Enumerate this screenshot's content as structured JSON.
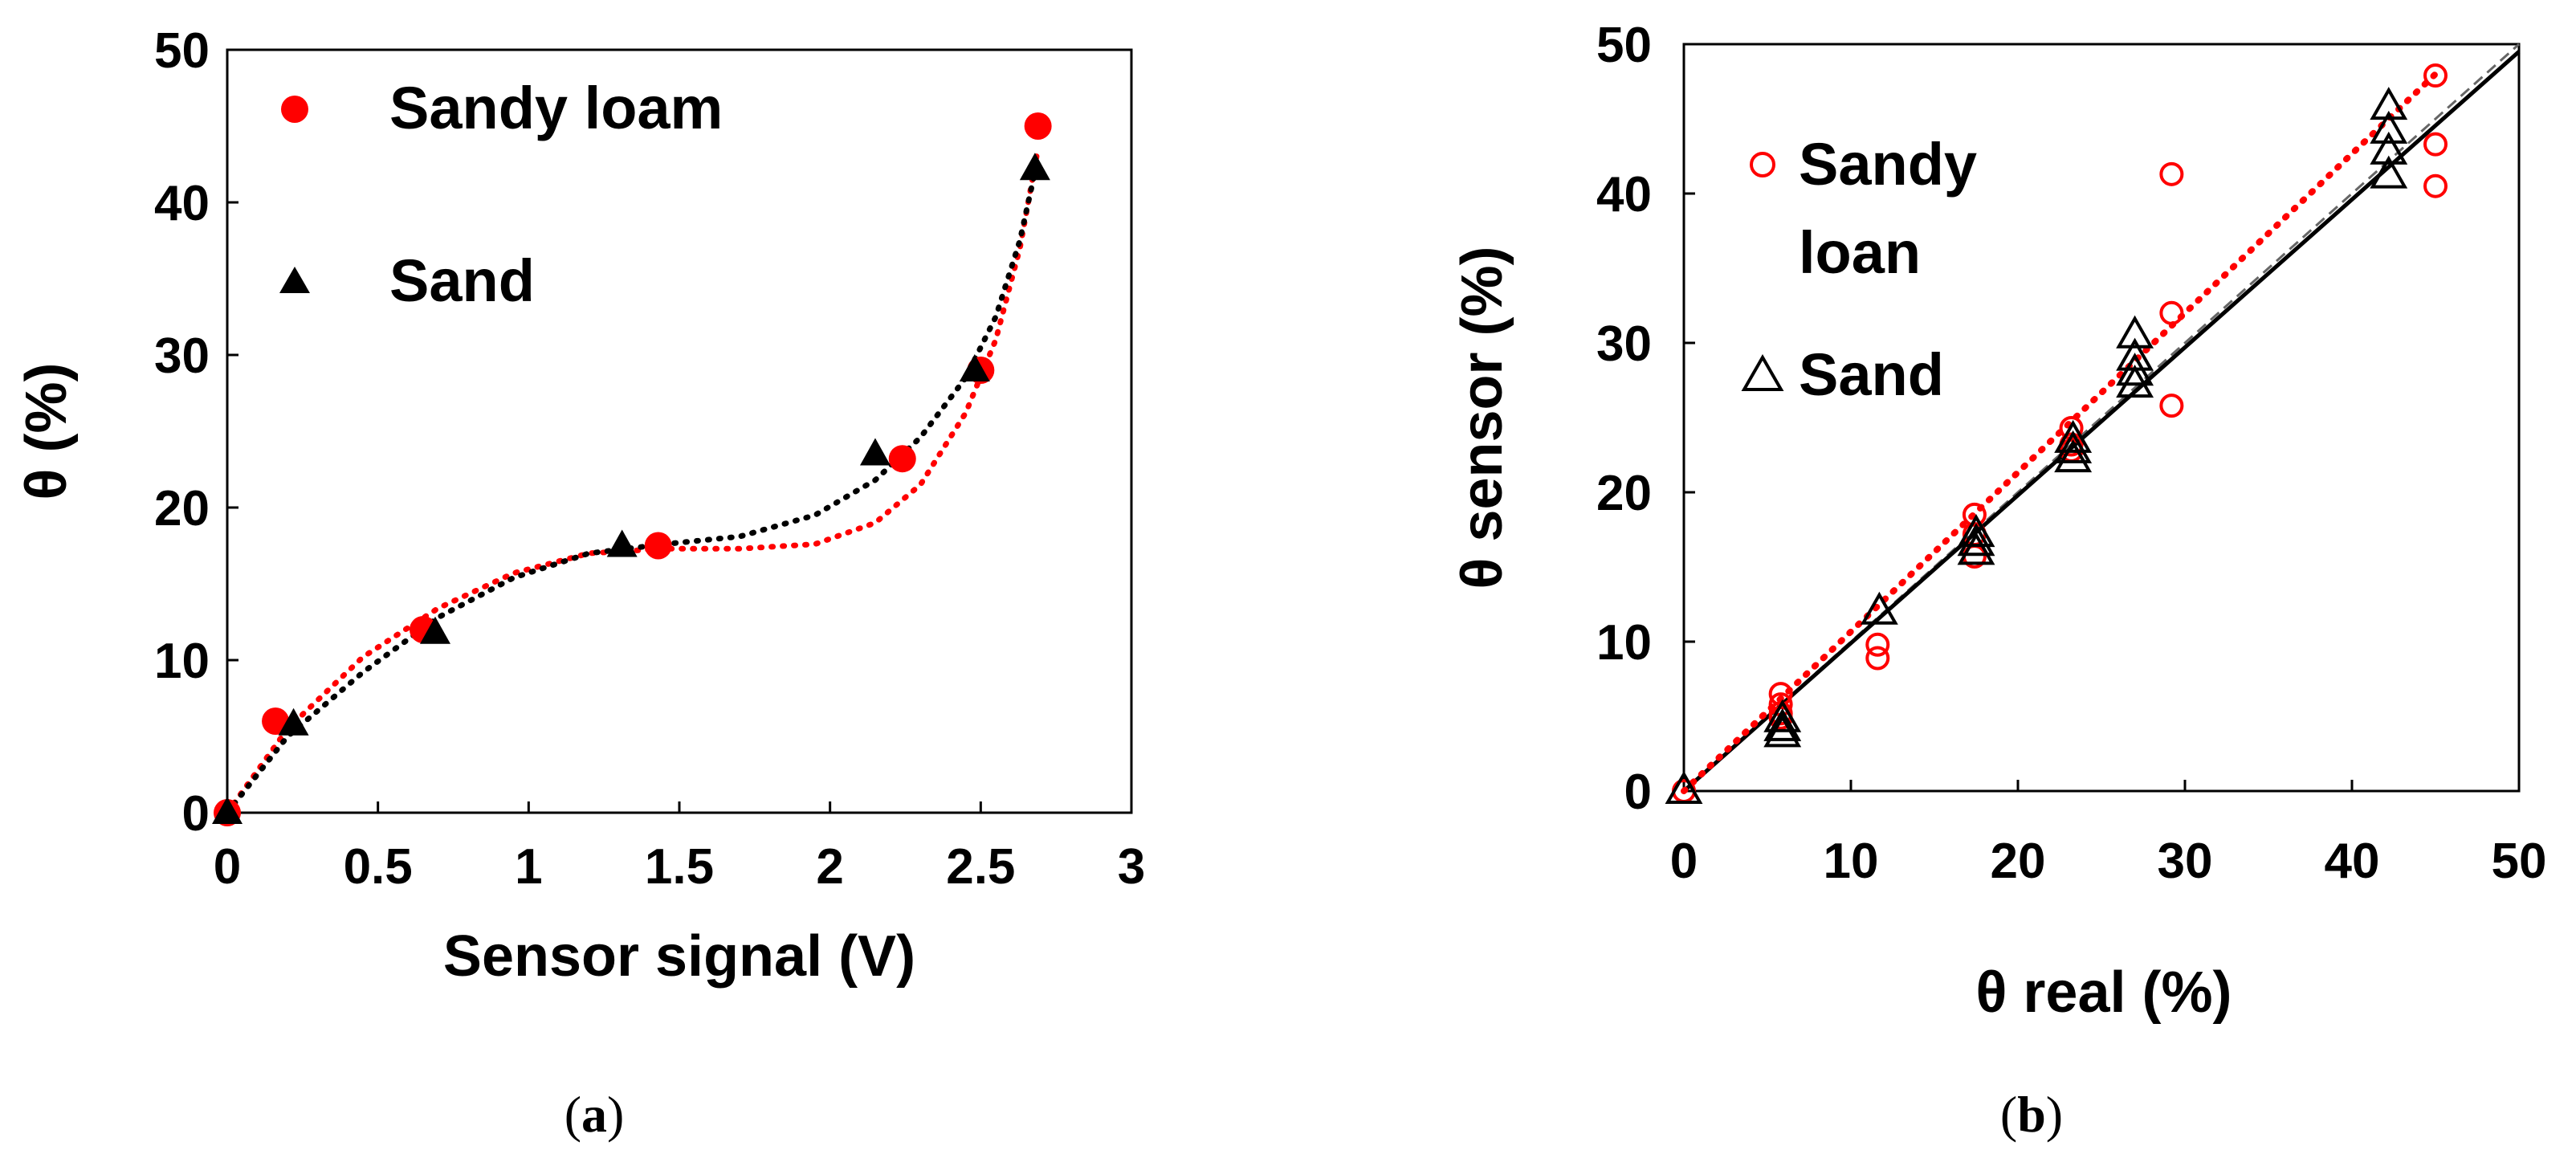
{
  "chart_data": [
    {
      "type": "scatter",
      "panel_label": "a",
      "xlabel": "Sensor signal (V)",
      "ylabel": "θ  (%)",
      "xlim": [
        0,
        3
      ],
      "ylim": [
        0,
        50
      ],
      "xticks": [
        "0",
        "0.5",
        "1",
        "1.5",
        "2",
        "2.5",
        "3"
      ],
      "yticks": [
        "0",
        "10",
        "20",
        "30",
        "40",
        "50"
      ],
      "legend_position": "top-left",
      "series": [
        {
          "name": "Sandy loam",
          "color": "#ff0000",
          "marker": "filled-circle",
          "x": [
            0,
            0.16,
            0.65,
            1.43,
            2.24,
            2.5,
            2.69
          ],
          "y": [
            0,
            6,
            12,
            17.5,
            23.2,
            29,
            45
          ],
          "trend_x": [
            0,
            0.2,
            0.45,
            0.7,
            0.95,
            1.2,
            1.45,
            1.7,
            1.95,
            2.15,
            2.3,
            2.45,
            2.55,
            2.63,
            2.69
          ],
          "trend_y": [
            0,
            5.5,
            10.2,
            13.4,
            15.7,
            17.0,
            17.3,
            17.3,
            17.6,
            19.0,
            21.5,
            26.2,
            31.0,
            37.0,
            43.5
          ]
        },
        {
          "name": "Sand",
          "color": "#000000",
          "marker": "filled-triangle",
          "x": [
            0,
            0.22,
            0.69,
            1.31,
            2.15,
            2.48,
            2.68
          ],
          "y": [
            0,
            5.8,
            11.8,
            17.5,
            23.5,
            29,
            42.2
          ],
          "trend_x": [
            0,
            0.2,
            0.45,
            0.7,
            0.95,
            1.2,
            1.45,
            1.7,
            1.95,
            2.15,
            2.3,
            2.45,
            2.55,
            2.63,
            2.68
          ],
          "trend_y": [
            0,
            5.0,
            9.2,
            12.8,
            15.4,
            17.0,
            17.6,
            18.1,
            19.5,
            21.8,
            24.6,
            28.5,
            32.5,
            37.5,
            42.0
          ]
        }
      ]
    },
    {
      "type": "scatter",
      "panel_label": "b",
      "xlabel": "θ real  (%)",
      "ylabel": "θ sensor  (%)",
      "xlim": [
        0,
        50
      ],
      "ylim": [
        0,
        50
      ],
      "xticks": [
        "0",
        "10",
        "20",
        "30",
        "40",
        "50"
      ],
      "yticks": [
        "0",
        "10",
        "20",
        "30",
        "40",
        "50"
      ],
      "legend_position": "top-left",
      "series": [
        {
          "name": "Sandy loan",
          "legend_lines": [
            "Sandy",
            "loan"
          ],
          "color": "#ff0000",
          "marker": "open-circle",
          "x": [
            0,
            5.8,
            5.8,
            5.8,
            5.8,
            11.6,
            11.6,
            17.4,
            17.4,
            17.4,
            23.2,
            23.2,
            23.2,
            29.2,
            29.2,
            29.2,
            45,
            45,
            45
          ],
          "y": [
            0,
            6.5,
            5.8,
            5.2,
            4.9,
            9.8,
            8.9,
            18.5,
            17.2,
            15.7,
            24.3,
            23.2,
            22.8,
            41.3,
            32.0,
            25.8,
            47.9,
            43.3,
            40.5
          ],
          "fit_y_at_x0": 0,
          "fit_y_at_x45": 48
        },
        {
          "name": "Sand",
          "legend_lines": [
            "Sand"
          ],
          "color": "#000000",
          "marker": "open-triangle",
          "x": [
            0,
            5.9,
            5.9,
            5.9,
            11.7,
            17.5,
            17.5,
            17.5,
            23.3,
            23.3,
            23.3,
            27,
            27,
            27,
            27,
            42.2,
            42.2,
            42.2,
            42.2
          ],
          "y": [
            0,
            4.8,
            4.2,
            3.8,
            12.0,
            17.2,
            16.6,
            16.0,
            23.5,
            22.8,
            22.2,
            30.5,
            29.0,
            28.0,
            27.2,
            45.8,
            44.2,
            42.8,
            41.2
          ],
          "fit_y_at_x0": 0,
          "fit_y_at_x50": 49.5
        },
        {
          "name": "1:1 line",
          "color": "#666666",
          "style": "dashed",
          "x": [
            0,
            50
          ],
          "y": [
            0,
            50
          ]
        }
      ]
    }
  ]
}
